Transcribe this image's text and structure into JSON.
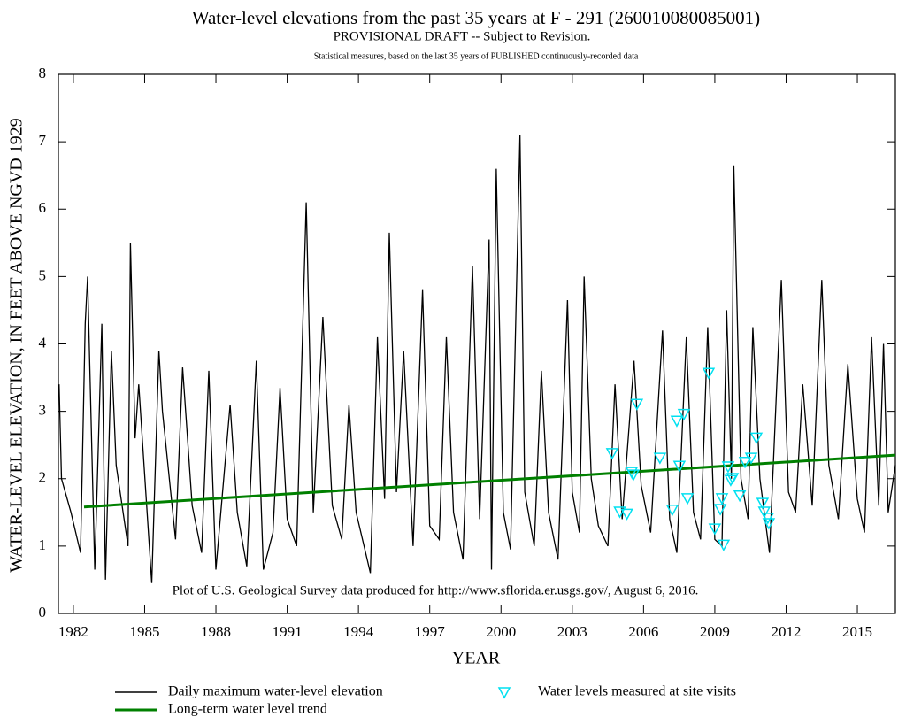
{
  "chart_data": {
    "type": "line",
    "title": "Water-level elevations from the past 35 years at F  - 291 (260010080085001)",
    "subtitle": "PROVISIONAL DRAFT -- Subject to Revision.",
    "subtitle2": "Statistical measures, based on the last 35 years of PUBLISHED continuously-recorded data",
    "annotation": "Plot of U.S. Geological Survey data produced for http://www.sflorida.er.usgs.gov/, August 6, 2016.",
    "x_label": "YEAR",
    "y_label": "WATER-LEVEL ELEVATION, IN FEET ABOVE NGVD 1929",
    "xlim": [
      1981.37,
      2016.6
    ],
    "ylim": [
      0,
      8
    ],
    "xticks": [
      1982,
      1985,
      1988,
      1991,
      1994,
      1997,
      2000,
      2003,
      2006,
      2009,
      2012,
      2015
    ],
    "yticks": [
      0,
      1,
      2,
      3,
      4,
      5,
      6,
      7,
      8
    ],
    "series": [
      {
        "name": "Daily maximum water-level elevation",
        "color": "#000000",
        "kind": "line",
        "x": [
          1981.4,
          1981.5,
          1981.9,
          1982.3,
          1982.5,
          1982.6,
          1982.9,
          1983.2,
          1983.35,
          1983.6,
          1983.8,
          1984.3,
          1984.4,
          1984.6,
          1984.75,
          1985.3,
          1985.6,
          1985.75,
          1986.3,
          1986.6,
          1987.0,
          1987.4,
          1987.7,
          1988.0,
          1988.6,
          1988.9,
          1989.3,
          1989.7,
          1990.0,
          1990.4,
          1990.7,
          1991.0,
          1991.4,
          1991.8,
          1992.1,
          1992.5,
          1992.9,
          1993.3,
          1993.6,
          1993.9,
          1994.5,
          1994.8,
          1995.1,
          1995.3,
          1995.6,
          1995.9,
          1996.3,
          1996.7,
          1997.0,
          1997.4,
          1997.7,
          1998.0,
          1998.4,
          1998.8,
          1999.1,
          1999.5,
          1999.6,
          1999.8,
          2000.1,
          2000.4,
          2000.8,
          2001.0,
          2001.4,
          2001.7,
          2002.0,
          2002.4,
          2002.8,
          2003.0,
          2003.3,
          2003.5,
          2003.8,
          2004.1,
          2004.5,
          2004.8,
          2005.1,
          2005.6,
          2005.9,
          2006.3,
          2006.8,
          2007.1,
          2007.4,
          2007.8,
          2008.1,
          2008.4,
          2008.7,
          2009.0,
          2009.3,
          2009.5,
          2009.7,
          2009.8,
          2010.1,
          2010.4,
          2010.6,
          2010.9,
          2011.3,
          2011.8,
          2012.1,
          2012.4,
          2012.7,
          2013.1,
          2013.5,
          2013.8,
          2014.2,
          2014.6,
          2015.0,
          2015.3,
          2015.6,
          2015.9,
          2016.1,
          2016.3,
          2016.6
        ],
        "values": [
          3.4,
          2.0,
          1.5,
          0.9,
          4.3,
          5.0,
          0.65,
          4.3,
          0.5,
          3.9,
          2.2,
          1.0,
          5.5,
          2.6,
          3.4,
          0.45,
          3.9,
          3.0,
          1.1,
          3.65,
          1.6,
          0.9,
          3.6,
          0.65,
          3.1,
          1.5,
          0.7,
          3.75,
          0.65,
          1.2,
          3.35,
          1.4,
          1.0,
          6.1,
          1.5,
          4.4,
          1.6,
          1.1,
          3.1,
          1.5,
          0.6,
          4.1,
          1.7,
          5.65,
          1.8,
          3.9,
          1.0,
          4.8,
          1.3,
          1.1,
          4.1,
          1.5,
          0.8,
          5.15,
          1.4,
          5.55,
          0.65,
          6.6,
          1.5,
          0.95,
          7.1,
          1.8,
          1.0,
          3.6,
          1.5,
          0.8,
          4.65,
          1.8,
          1.2,
          5.0,
          2.0,
          1.3,
          1.0,
          3.4,
          1.4,
          3.75,
          1.9,
          1.2,
          4.2,
          1.4,
          0.9,
          4.1,
          1.5,
          1.1,
          4.25,
          1.1,
          1.0,
          4.5,
          2.0,
          6.65,
          2.0,
          1.4,
          4.25,
          2.0,
          0.9,
          4.95,
          1.8,
          1.5,
          3.4,
          1.6,
          4.95,
          2.2,
          1.4,
          3.7,
          1.7,
          1.2,
          4.1,
          1.6,
          4.0,
          1.5,
          2.2
        ]
      },
      {
        "name": "Long-term water level trend",
        "color": "#008000",
        "kind": "line",
        "x": [
          1982.45,
          2016.6
        ],
        "values": [
          1.58,
          2.35
        ]
      },
      {
        "name": "Water levels measured at site visits",
        "color": "#00e0f0",
        "kind": "marker",
        "x": [
          2004.68,
          2005.0,
          2005.3,
          2005.5,
          2005.57,
          2005.72,
          2006.69,
          2007.21,
          2007.4,
          2007.51,
          2007.7,
          2007.85,
          2008.74,
          2009.0,
          2009.23,
          2009.3,
          2009.37,
          2009.56,
          2009.67,
          2009.75,
          2010.05,
          2010.27,
          2010.53,
          2010.75,
          2011.01,
          2011.08,
          2011.23,
          2011.27
        ],
        "values": [
          2.38,
          1.51,
          1.48,
          2.1,
          2.06,
          3.11,
          2.31,
          1.54,
          2.86,
          2.19,
          2.96,
          1.71,
          3.57,
          1.26,
          1.55,
          1.71,
          1.02,
          2.18,
          1.98,
          2.01,
          1.75,
          2.25,
          2.31,
          2.61,
          1.64,
          1.51,
          1.42,
          1.34
        ]
      }
    ]
  }
}
